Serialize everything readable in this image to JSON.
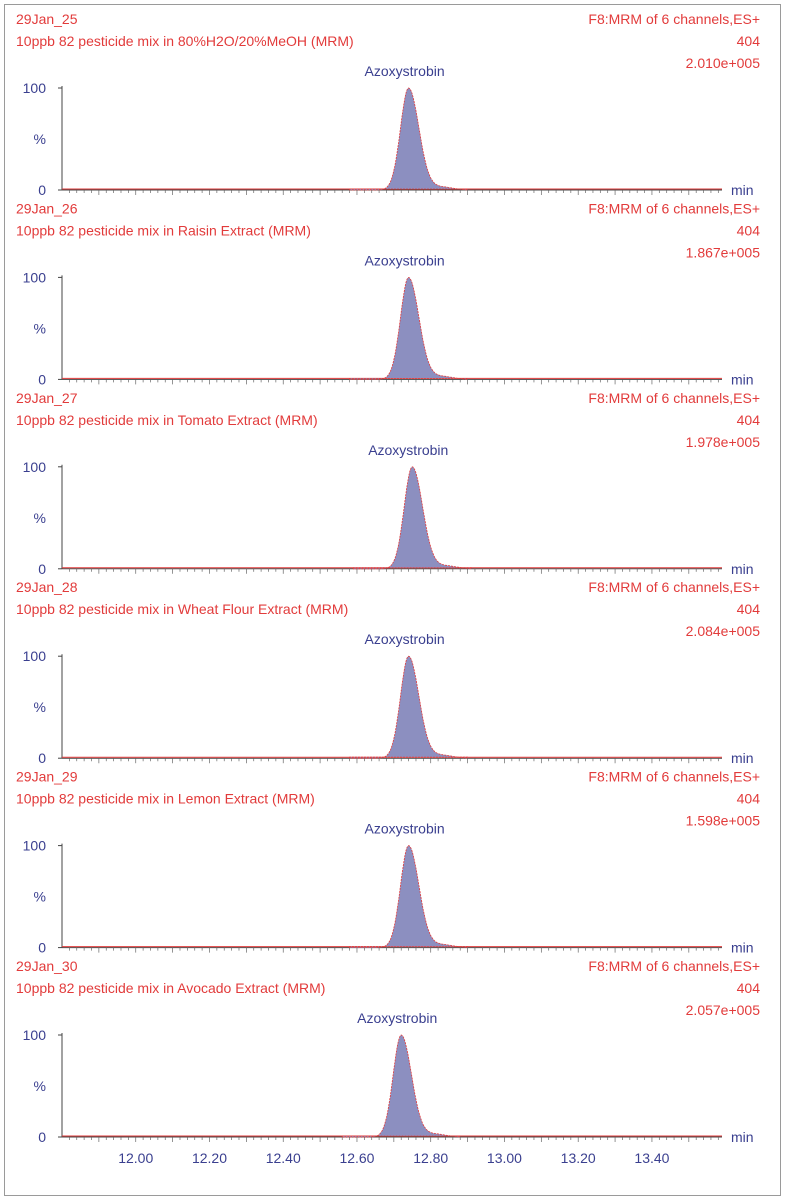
{
  "chart_data": {
    "type": "line",
    "xlabel": "min",
    "xlim": [
      11.8,
      13.59
    ],
    "x_ticks": [
      "12.00",
      "12.20",
      "12.40",
      "12.60",
      "12.80",
      "13.00",
      "13.20",
      "13.40"
    ],
    "x_tick_values": [
      12.0,
      12.2,
      12.4,
      12.6,
      12.8,
      13.0,
      13.2,
      13.4
    ],
    "y_ticks": [
      "100",
      "%",
      "0"
    ],
    "ylim": [
      0,
      100
    ],
    "colors": {
      "header": "#e23b3b",
      "axis": "#3a3f8f",
      "fill": "#8c8fc0",
      "trace": "#e23b3b"
    },
    "panels": [
      {
        "sample": "29Jan_25",
        "description": "10ppb 82 pesticide mix in 80%H2O/20%MeOH (MRM)",
        "function": "F8:MRM of 6 channels,ES+",
        "channel": "404",
        "intensity": "2.010e+005",
        "peak_label": "Azoxystrobin",
        "peak_rt": 12.74,
        "peak_height": 100
      },
      {
        "sample": "29Jan_26",
        "description": "10ppb 82 pesticide mix in Raisin Extract (MRM)",
        "function": "F8:MRM of 6 channels,ES+",
        "channel": "404",
        "intensity": "1.867e+005",
        "peak_label": "Azoxystrobin",
        "peak_rt": 12.74,
        "peak_height": 100
      },
      {
        "sample": "29Jan_27",
        "description": "10ppb 82 pesticide mix in Tomato Extract (MRM)",
        "function": "F8:MRM of 6 channels,ES+",
        "channel": "404",
        "intensity": "1.978e+005",
        "peak_label": "Azoxystrobin",
        "peak_rt": 12.75,
        "peak_height": 100
      },
      {
        "sample": "29Jan_28",
        "description": "10ppb 82 pesticide mix in Wheat Flour Extract (MRM)",
        "function": "F8:MRM of 6 channels,ES+",
        "channel": "404",
        "intensity": "2.084e+005",
        "peak_label": "Azoxystrobin",
        "peak_rt": 12.74,
        "peak_height": 100
      },
      {
        "sample": "29Jan_29",
        "description": "10ppb 82 pesticide mix in Lemon Extract (MRM)",
        "function": "F8:MRM of 6 channels,ES+",
        "channel": "404",
        "intensity": "1.598e+005",
        "peak_label": "Azoxystrobin",
        "peak_rt": 12.74,
        "peak_height": 100
      },
      {
        "sample": "29Jan_30",
        "description": "10ppb 82 pesticide mix in Avocado Extract (MRM)",
        "function": "F8:MRM of 6 channels,ES+",
        "channel": "404",
        "intensity": "2.057e+005",
        "peak_label": "Azoxystrobin",
        "peak_rt": 12.72,
        "peak_height": 100
      }
    ]
  }
}
